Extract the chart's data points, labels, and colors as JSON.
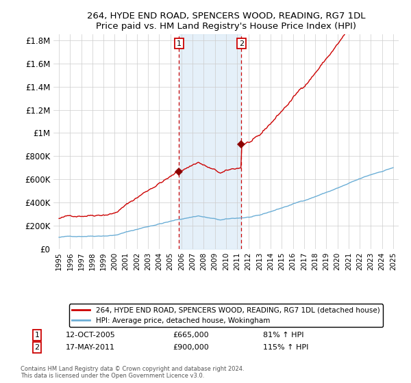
{
  "title": "264, HYDE END ROAD, SPENCERS WOOD, READING, RG7 1DL",
  "subtitle": "Price paid vs. HM Land Registry's House Price Index (HPI)",
  "hpi_label": "HPI: Average price, detached house, Wokingham",
  "property_label": "264, HYDE END ROAD, SPENCERS WOOD, READING, RG7 1DL (detached house)",
  "sale1_date": "12-OCT-2005",
  "sale1_price": 665000,
  "sale1_pct": "81% ↑ HPI",
  "sale2_date": "17-MAY-2011",
  "sale2_price": 900000,
  "sale2_pct": "115% ↑ HPI",
  "sale1_x": 2005.78,
  "sale2_x": 2011.38,
  "ylim": [
    0,
    1850000
  ],
  "xlim": [
    1994.5,
    2025.5
  ],
  "yticks": [
    0,
    200000,
    400000,
    600000,
    800000,
    1000000,
    1200000,
    1400000,
    1600000,
    1800000
  ],
  "ylabels": [
    "£0",
    "£200K",
    "£400K",
    "£600K",
    "£800K",
    "£1M",
    "£1.2M",
    "£1.4M",
    "£1.6M",
    "£1.8M"
  ],
  "copyright": "Contains HM Land Registry data © Crown copyright and database right 2024.\nThis data is licensed under the Open Government Licence v3.0.",
  "hpi_color": "#6baed6",
  "property_color": "#cc0000",
  "shaded_color": "#daeaf7",
  "marker_color": "#8b0000",
  "sale_line_color": "#cc0000",
  "grid_color": "#cccccc"
}
